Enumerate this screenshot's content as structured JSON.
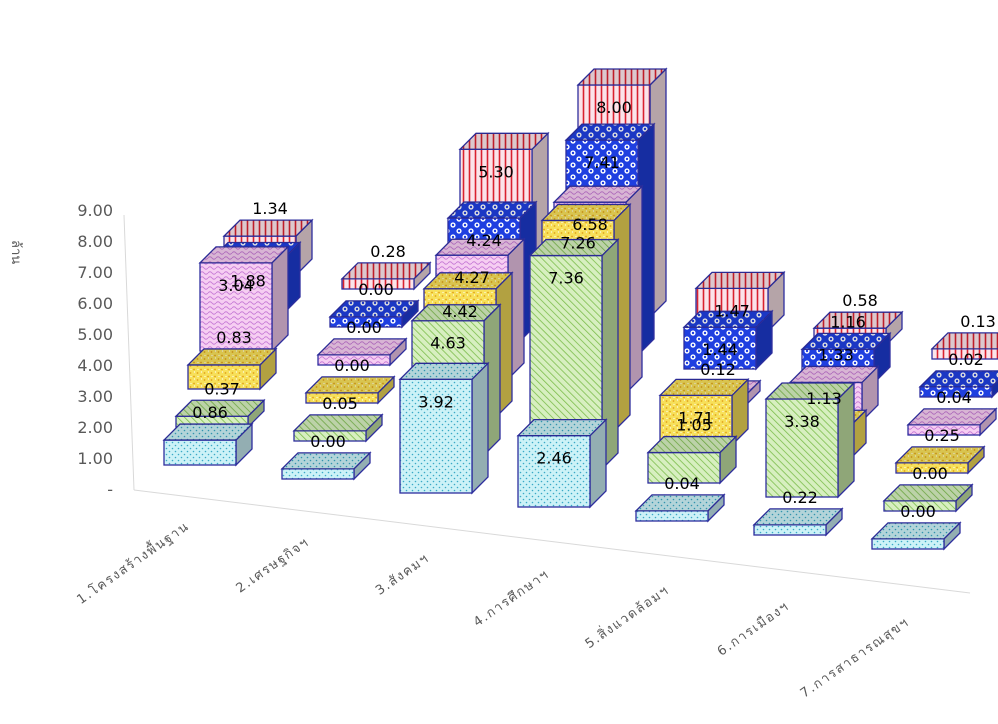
{
  "chart_data": {
    "type": "bar",
    "subtype": "3d-clustered-column",
    "title": "",
    "ylabel": "ล้าน",
    "xlabel": "",
    "ylim": [
      0,
      9
    ],
    "y_ticks": [
      "-",
      "1.00",
      "2.00",
      "3.00",
      "4.00",
      "5.00",
      "6.00",
      "7.00",
      "8.00",
      "9.00"
    ],
    "grid": false,
    "legend": "none",
    "categories": [
      "1.โครงสร้างพื้นฐาน",
      "2.เศรษฐกิจฯ",
      "3.สังคมฯ",
      "4.การศึกษาฯ",
      "5.สิ่งแวดล้อมฯ",
      "6.การเมืองฯ",
      "7.การสาธารณสุขฯ"
    ],
    "series": [
      {
        "values": [
          0.86,
          0.0,
          3.92,
          2.46,
          0.04,
          0.22,
          0.0
        ],
        "labels": [
          "0.86",
          "0.00",
          "3.92",
          "2.46",
          "0.04",
          "0.22",
          "0.00"
        ],
        "color": "#ccf2f7",
        "pattern": "dots"
      },
      {
        "values": [
          0.37,
          0.05,
          4.63,
          7.36,
          1.05,
          3.38,
          0.0
        ],
        "labels": [
          "0.37",
          "0.05",
          "4.63",
          "7.36",
          "1.05",
          "3.38",
          "0.00"
        ],
        "color": "#c6e6a6",
        "pattern": "diagonal"
      },
      {
        "values": [
          0.83,
          0.0,
          4.42,
          7.26,
          1.71,
          1.13,
          0.25
        ],
        "labels": [
          "0.83",
          "0.00",
          "4.42",
          "7.26",
          "1.71",
          "1.13",
          "0.25"
        ],
        "color": "#f7e05a",
        "pattern": "speckle"
      },
      {
        "values": [
          3.04,
          0.0,
          4.27,
          6.58,
          0.12,
          1.33,
          0.04
        ],
        "labels": [
          "3.04",
          "0.00",
          "4.27",
          "6.58",
          "0.12",
          "1.33",
          "0.04"
        ],
        "color": "#f6cef2",
        "pattern": "wave"
      },
      {
        "values": [
          1.88,
          0.0,
          4.24,
          7.41,
          1.44,
          1.16,
          0.02
        ],
        "labels": [
          "1.88",
          "0.00",
          "4.24",
          "7.41",
          "1.44",
          "1.16",
          "0.02"
        ],
        "color": "#1f3fe0",
        "pattern": "bubbles"
      },
      {
        "values": [
          1.34,
          0.28,
          5.3,
          8.0,
          1.47,
          0.58,
          0.13
        ],
        "labels": [
          "1.34",
          "0.28",
          "5.30",
          "8.00",
          "1.47",
          "0.58",
          "0.13"
        ],
        "color": "#fbe4ea",
        "pattern": "vertical"
      }
    ]
  }
}
